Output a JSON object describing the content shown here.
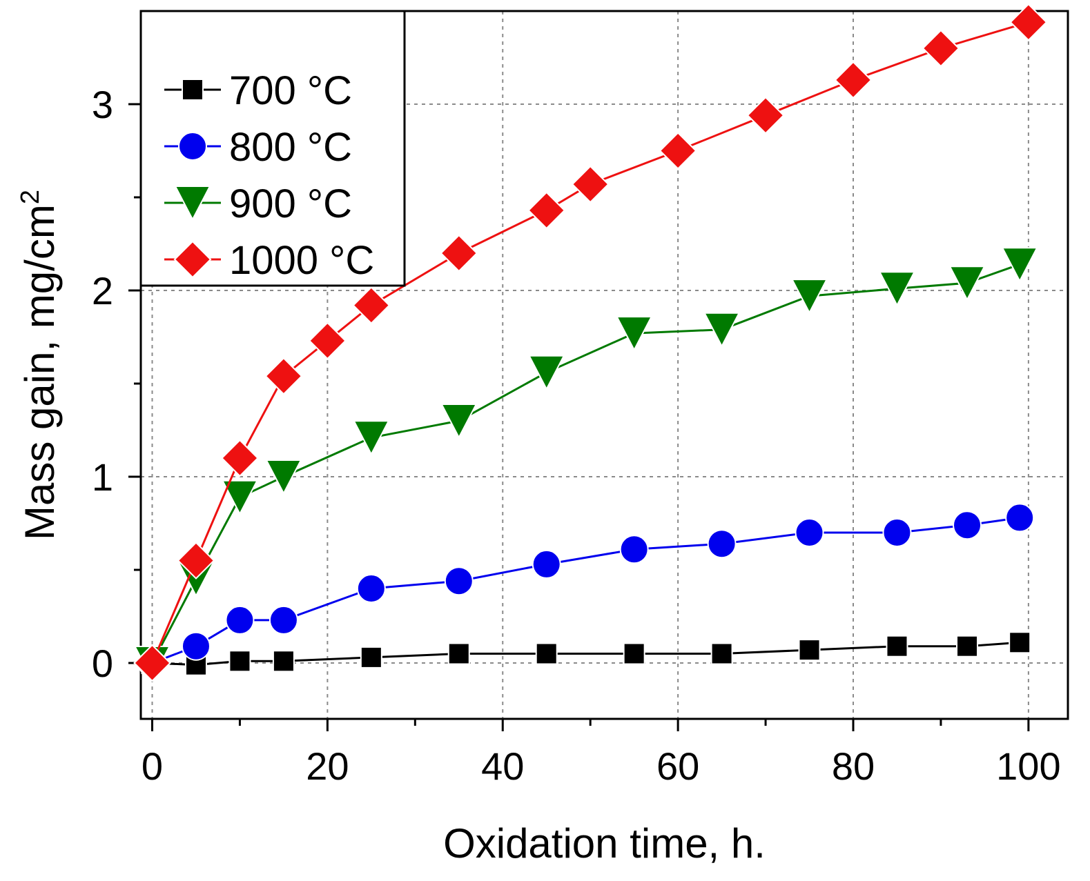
{
  "chart_data": {
    "type": "line",
    "title": "",
    "xlabel": "Oxidation time, h.",
    "ylabel": "Mass gain, mg/cm",
    "ylabel_superscript": "2",
    "xlim": [
      -1.3,
      104.5
    ],
    "ylim": [
      -0.3,
      3.5
    ],
    "xticks": [
      0,
      20,
      40,
      60,
      80,
      100
    ],
    "xtick_labels": [
      "0",
      "20",
      "40",
      "60",
      "80",
      "100"
    ],
    "xticks_minor": [
      10,
      30,
      50,
      70,
      90
    ],
    "yticks": [
      0,
      1,
      2,
      3
    ],
    "ytick_labels": [
      "0",
      "1",
      "2",
      "3"
    ],
    "yticks_minor": [
      0.5,
      1.5,
      2.5
    ],
    "grid": true,
    "legend_position": "top-left",
    "series": [
      {
        "name": "700 °C",
        "color": "#000000",
        "marker": "square",
        "x": [
          0,
          5,
          10,
          15,
          25,
          35,
          45,
          55,
          65,
          75,
          85,
          93,
          99
        ],
        "y": [
          0,
          -0.01,
          0.01,
          0.01,
          0.03,
          0.05,
          0.05,
          0.05,
          0.05,
          0.07,
          0.09,
          0.09,
          0.11
        ]
      },
      {
        "name": "800 °C",
        "color": "#0000ee",
        "marker": "circle",
        "x": [
          0,
          5,
          10,
          15,
          25,
          35,
          45,
          55,
          65,
          75,
          85,
          93,
          99
        ],
        "y": [
          0,
          0.09,
          0.23,
          0.23,
          0.4,
          0.44,
          0.53,
          0.61,
          0.64,
          0.7,
          0.7,
          0.74,
          0.78
        ]
      },
      {
        "name": "900 °C",
        "color": "#007a00",
        "marker": "triangle-down",
        "x": [
          0,
          5,
          10,
          15,
          25,
          35,
          45,
          55,
          65,
          75,
          85,
          93,
          99
        ],
        "y": [
          0,
          0.45,
          0.89,
          1.0,
          1.21,
          1.3,
          1.56,
          1.77,
          1.79,
          1.97,
          2.01,
          2.04,
          2.14
        ]
      },
      {
        "name": "1000 °C",
        "color": "#ee1111",
        "marker": "diamond",
        "x": [
          0,
          5,
          10,
          15,
          20,
          25,
          35,
          45,
          50,
          60,
          70,
          80,
          90,
          100
        ],
        "y": [
          0,
          0.55,
          1.1,
          1.54,
          1.73,
          1.92,
          2.2,
          2.43,
          2.57,
          2.75,
          2.94,
          3.13,
          3.3,
          3.44
        ]
      }
    ]
  }
}
